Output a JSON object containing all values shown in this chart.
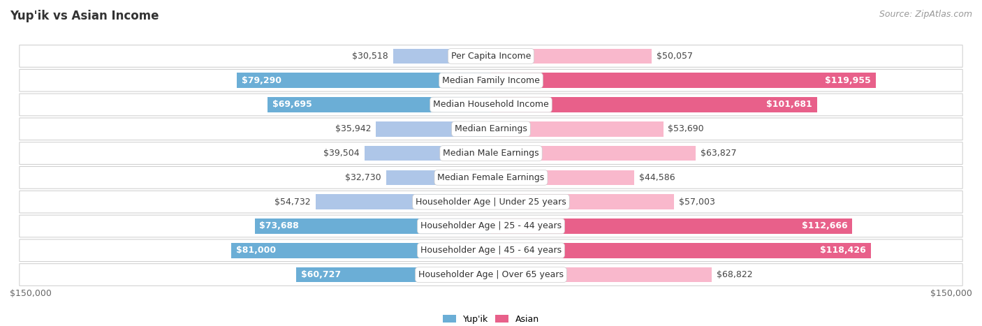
{
  "title": "Yup'ik vs Asian Income",
  "source": "Source: ZipAtlas.com",
  "categories": [
    "Per Capita Income",
    "Median Family Income",
    "Median Household Income",
    "Median Earnings",
    "Median Male Earnings",
    "Median Female Earnings",
    "Householder Age | Under 25 years",
    "Householder Age | 25 - 44 years",
    "Householder Age | 45 - 64 years",
    "Householder Age | Over 65 years"
  ],
  "yupik_values": [
    30518,
    79290,
    69695,
    35942,
    39504,
    32730,
    54732,
    73688,
    81000,
    60727
  ],
  "asian_values": [
    50057,
    119955,
    101681,
    53690,
    63827,
    44586,
    57003,
    112666,
    118426,
    68822
  ],
  "yupik_labels": [
    "$30,518",
    "$79,290",
    "$69,695",
    "$35,942",
    "$39,504",
    "$32,730",
    "$54,732",
    "$73,688",
    "$81,000",
    "$60,727"
  ],
  "asian_labels": [
    "$50,057",
    "$119,955",
    "$101,681",
    "$53,690",
    "$63,827",
    "$44,586",
    "$57,003",
    "$112,666",
    "$118,426",
    "$68,822"
  ],
  "yupik_color_light": "#aec6e8",
  "yupik_color_dark": "#6baed6",
  "asian_color_light": "#f9b8cc",
  "asian_color_dark": "#e8608a",
  "max_value": 150000,
  "bg_color": "#ffffff",
  "row_bg_color": "#f0f0f0",
  "row_border_color": "#cccccc",
  "title_fontsize": 12,
  "source_fontsize": 9,
  "label_fontsize": 9,
  "category_fontsize": 9,
  "axis_label_fontsize": 9,
  "yupik_inside_threshold": 60000,
  "asian_inside_threshold": 90000
}
